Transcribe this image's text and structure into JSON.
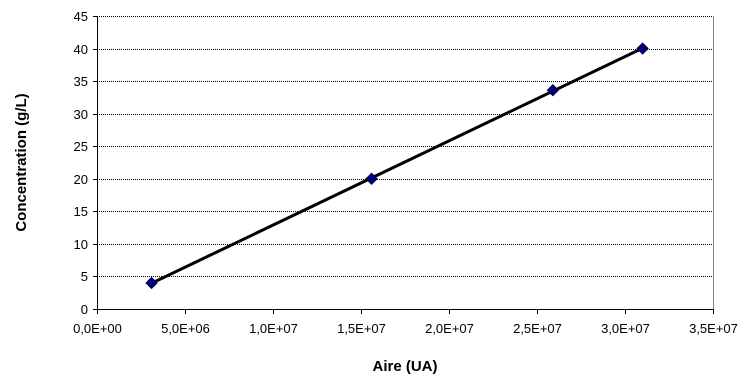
{
  "chart_data": {
    "type": "scatter",
    "title": "",
    "xlabel": "Aire (UA)",
    "ylabel": "Concentration (g/L)",
    "xlim": [
      0,
      35000000
    ],
    "ylim": [
      0,
      45
    ],
    "x_ticks": [
      0,
      5000000,
      10000000,
      15000000,
      20000000,
      25000000,
      30000000,
      35000000
    ],
    "x_tick_labels": [
      "0,0E+00",
      "5,0E+06",
      "1,0E+07",
      "1,5E+07",
      "2,0E+07",
      "2,5E+07",
      "3,0E+07",
      "3,5E+07"
    ],
    "y_ticks": [
      0,
      5,
      10,
      15,
      20,
      25,
      30,
      35,
      40,
      45
    ],
    "y_tick_labels": [
      "0",
      "5",
      "10",
      "15",
      "20",
      "25",
      "30",
      "35",
      "40",
      "45"
    ],
    "grid": "horizontal",
    "legend": "none",
    "series": [
      {
        "points": [
          {
            "x": 3100000,
            "y": 4
          },
          {
            "x": 15600000,
            "y": 20
          },
          {
            "x": 25900000,
            "y": 33.6
          },
          {
            "x": 31000000,
            "y": 40
          }
        ],
        "marker": "diamond",
        "marker_color": "#000080",
        "line_color": "#000000"
      }
    ],
    "trendline": {
      "type": "linear",
      "color": "#000000"
    }
  }
}
